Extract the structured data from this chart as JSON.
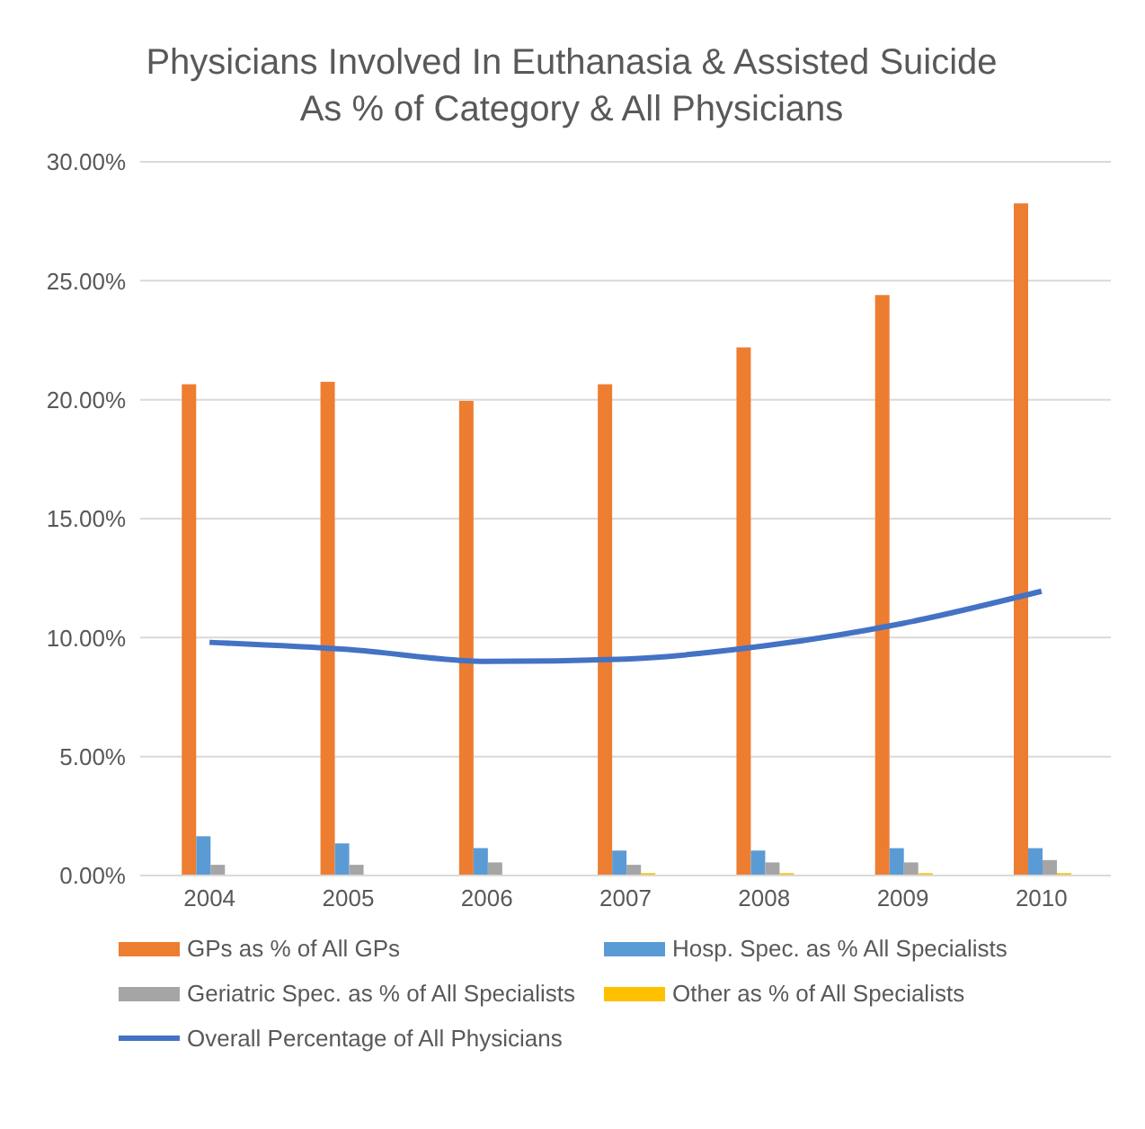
{
  "chart_data": {
    "type": "bar",
    "title": "Physicians Involved In Euthanasia & Assisted Suicide As % of Category & All Physicians",
    "categories": [
      "2004",
      "2005",
      "2006",
      "2007",
      "2008",
      "2009",
      "2010"
    ],
    "series": [
      {
        "name": "GPs as % of All GPs",
        "color": "#ed7d31",
        "values": [
          20.65,
          20.75,
          19.95,
          20.65,
          22.2,
          24.4,
          28.25
        ]
      },
      {
        "name": "Hosp. Spec. as % All Specialists",
        "color": "#5b9bd5",
        "values": [
          1.65,
          1.35,
          1.15,
          1.05,
          1.05,
          1.15,
          1.15
        ]
      },
      {
        "name": "Geriatric Spec. as % of All Specialists",
        "color": "#a5a5a5",
        "values": [
          0.45,
          0.45,
          0.55,
          0.45,
          0.55,
          0.55,
          0.65
        ]
      },
      {
        "name": "Other as % of All Specialists",
        "color": "#ffc000",
        "values": [
          0,
          0,
          0,
          0.1,
          0.1,
          0.1,
          0.1
        ]
      },
      {
        "name": "Overall Percentage of All Physicians",
        "color": "#4472c4",
        "type": "line",
        "values": [
          9.8,
          9.5,
          9.0,
          9.1,
          9.65,
          10.6,
          11.95
        ]
      }
    ],
    "ylim": [
      0,
      30
    ],
    "yticks": [
      {
        "value": 0,
        "label": "0.00%"
      },
      {
        "value": 5,
        "label": "5.00%"
      },
      {
        "value": 10,
        "label": "10.00%"
      },
      {
        "value": 15,
        "label": "15.00%"
      },
      {
        "value": 20,
        "label": "20.00%"
      },
      {
        "value": 25,
        "label": "25.00%"
      },
      {
        "value": 30,
        "label": "30.00%"
      }
    ],
    "grid": "y",
    "legend": "bottom",
    "marker": "none",
    "line_style": "solid"
  }
}
